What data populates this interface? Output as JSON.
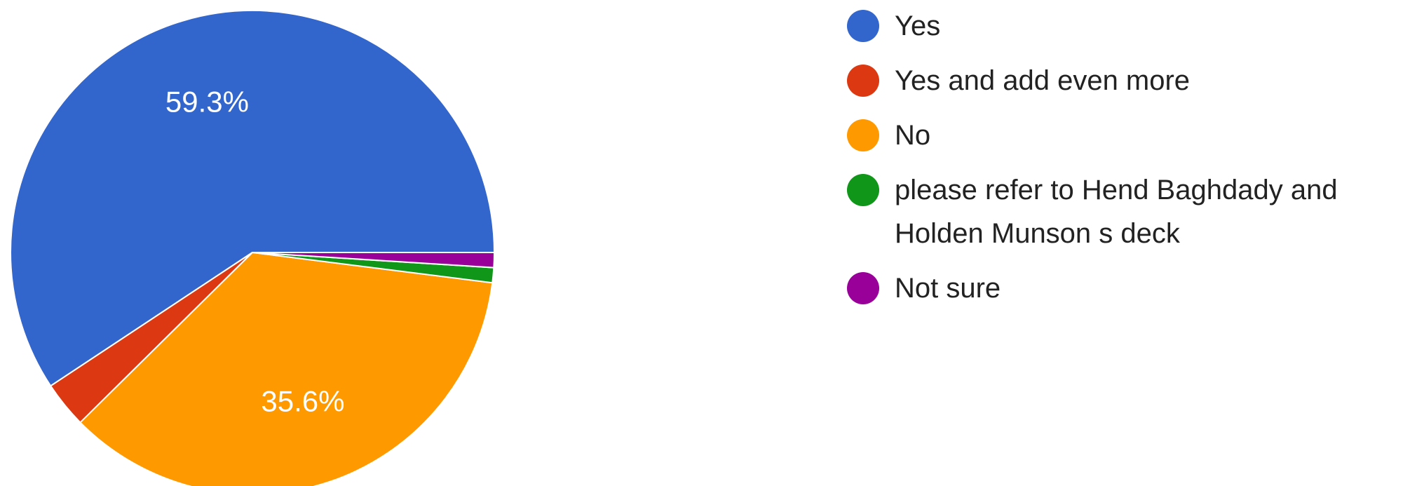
{
  "chart_data": {
    "type": "pie",
    "slices": [
      {
        "label": "Yes",
        "value": 59.3,
        "color": "#3366cc",
        "label_text": "59.3%"
      },
      {
        "label": "Yes and add even more",
        "value": 3.1,
        "color": "#dc3912",
        "label_text": ""
      },
      {
        "label": "No",
        "value": 35.6,
        "color": "#ff9900",
        "label_text": "35.6%"
      },
      {
        "label": "please refer to Hend Baghdady and Holden Munson s deck",
        "value": 1.0,
        "color": "#109618",
        "label_text": ""
      },
      {
        "label": "Not sure",
        "value": 1.0,
        "color": "#990099",
        "label_text": ""
      }
    ],
    "legend_position": "right"
  }
}
